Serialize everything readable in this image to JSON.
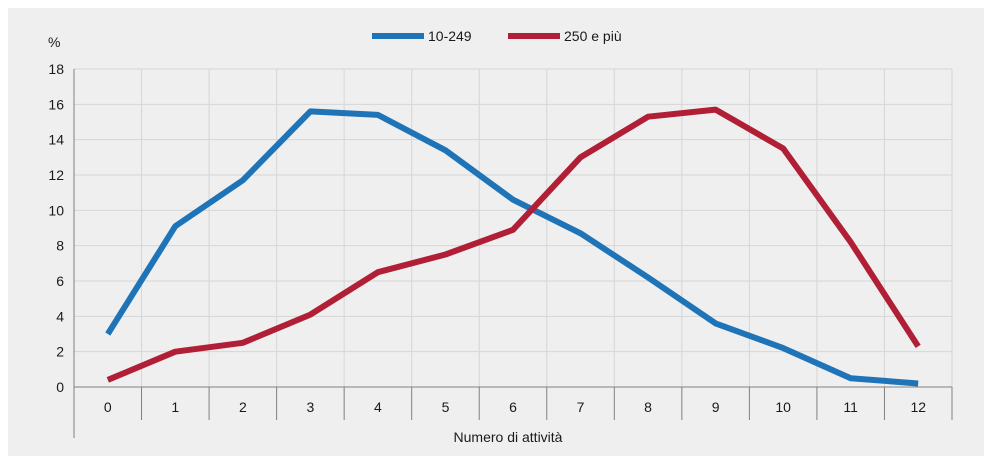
{
  "chart_data": {
    "type": "line",
    "ylabel": "%",
    "xlabel": "Numero di attività",
    "categories": [
      "0",
      "1",
      "2",
      "3",
      "4",
      "5",
      "6",
      "7",
      "8",
      "9",
      "10",
      "11",
      "12"
    ],
    "ylim": [
      0,
      18
    ],
    "yticks": [
      "0",
      "2",
      "4",
      "6",
      "8",
      "10",
      "12",
      "14",
      "16",
      "18"
    ],
    "grid": true,
    "legend_position": "top-center",
    "series": [
      {
        "name": "10-249",
        "color": "#1f74b8",
        "values": [
          3.0,
          9.1,
          11.7,
          15.6,
          15.4,
          13.4,
          10.6,
          8.7,
          6.2,
          3.6,
          2.2,
          0.5,
          0.2
        ]
      },
      {
        "name": "250 e più",
        "color": "#b01f35",
        "values": [
          0.4,
          2.0,
          2.5,
          4.1,
          6.5,
          7.5,
          8.9,
          13.0,
          15.3,
          15.7,
          13.5,
          8.2,
          2.3
        ]
      }
    ]
  }
}
